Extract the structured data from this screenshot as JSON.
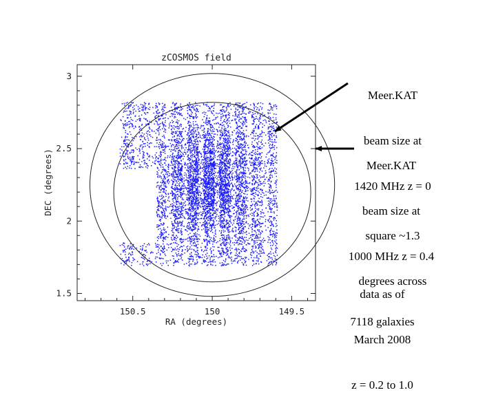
{
  "chart_data": {
    "type": "scatter",
    "title": "zCOSMOS field",
    "xlabel": "RA (degrees)",
    "ylabel": "DEC (degrees)",
    "xlim": [
      150.85,
      149.35
    ],
    "ylim": [
      1.45,
      3.08
    ],
    "x_ticks": [
      150.5,
      150,
      149.5
    ],
    "x_tick_labels": [
      "150.5",
      "150",
      "149.5"
    ],
    "y_ticks": [
      1.5,
      2,
      2.5,
      3
    ],
    "y_tick_labels": [
      "1.5",
      "2",
      "2.5",
      "3"
    ],
    "grid": false,
    "n_galaxies": 7118,
    "series": [
      {
        "name": "zCOSMOS galaxies (z = 0.2 to 1.0)",
        "color": "#1a1aff",
        "survey_region": {
          "ra_min": 149.59,
          "ra_max": 150.58,
          "dec_min": 1.69,
          "dec_max": 2.82
        },
        "missing_block": {
          "ra_min": 150.35,
          "ra_max": 150.58,
          "dec_min": 1.85,
          "dec_max": 2.36
        }
      }
    ],
    "circles": [
      {
        "name": "MeerKAT beam 1420 MHz z = 0",
        "center_ra": 150.0,
        "center_dec": 2.2,
        "radius_deg": 0.62
      },
      {
        "name": "MeerKAT beam 1000 MHz z = 0.4",
        "center_ra": 150.0,
        "center_dec": 2.25,
        "radius_deg": 0.77
      }
    ]
  },
  "annotations": {
    "beam1420": [
      "Meer.KAT",
      "beam size at",
      "1420 MHz z = 0"
    ],
    "beam1000": [
      "Meer.KAT",
      "beam size at",
      "1000 MHz z = 0.4"
    ],
    "square": [
      "square ~1.3",
      "degrees across"
    ],
    "data_date": [
      "data as of",
      "March 2008",
      "z = 0.2 to 1.0"
    ],
    "count": "7118 galaxies"
  },
  "colors": {
    "points": "#1a1aff",
    "axes": "#222222",
    "arrows": "#000000"
  }
}
